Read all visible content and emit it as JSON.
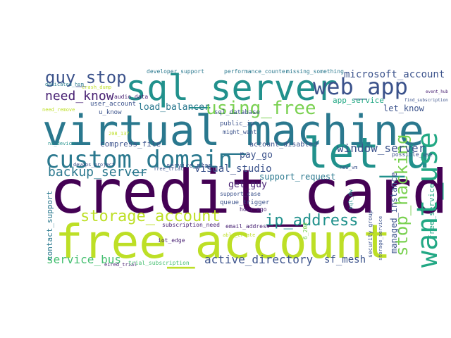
{
  "words": [
    {
      "text": "credit_card",
      "color": "#440154"
    },
    {
      "text": "virtual_machine",
      "color": "#2a788e"
    },
    {
      "text": "free_account",
      "color": "#bddf26"
    },
    {
      "text": "sql_server",
      "color": "#21918c"
    },
    {
      "text": "let_u",
      "color": "#21918c"
    },
    {
      "text": "web_app",
      "color": "#3b528b"
    },
    {
      "text": "custom_domain",
      "color": "#2a788e"
    },
    {
      "text": "want_use",
      "color": "#22a884"
    },
    {
      "text": "using_free",
      "color": "#7ad151"
    },
    {
      "text": "stop_hacking",
      "color": "#7ad151"
    },
    {
      "text": "guy_stop",
      "color": "#3b528b"
    },
    {
      "text": "storage_account",
      "color": "#bddf26"
    },
    {
      "text": "ip_address",
      "color": "#21918c"
    },
    {
      "text": "need_know",
      "color": "#482173"
    },
    {
      "text": "backup_server",
      "color": "#2a788e"
    },
    {
      "text": "window_server",
      "color": "#3b528b"
    },
    {
      "text": "active_directory",
      "color": "#3b528b"
    },
    {
      "text": "service_bus",
      "color": "#44bf70"
    },
    {
      "text": "microsoft_account",
      "color": "#3b528b"
    },
    {
      "text": "load_balancer",
      "color": "#2a788e"
    },
    {
      "text": "visual_studio",
      "color": "#3b528b"
    },
    {
      "text": "sf_mesh",
      "color": "#3b528b"
    },
    {
      "text": "managed_instance",
      "color": "#3b528b"
    },
    {
      "text": "support_request",
      "color": "#2a788e"
    },
    {
      "text": "pay_go",
      "color": "#3b528b"
    },
    {
      "text": "get_guy",
      "color": "#482173"
    },
    {
      "text": "let_know",
      "color": "#3b528b"
    },
    {
      "text": "compress_file",
      "color": "#3b528b"
    },
    {
      "text": "service_plan",
      "color": "#3b528b"
    },
    {
      "text": "app_service",
      "color": "#22a884"
    },
    {
      "text": "contact_support",
      "color": "#2a788e"
    },
    {
      "text": "free_service",
      "color": "#22a884"
    },
    {
      "text": "account_disabled",
      "color": "#3b528b"
    },
    {
      "text": "sql_database",
      "color": "#3b528b"
    },
    {
      "text": "public_ip",
      "color": "#3b528b"
    },
    {
      "text": "might_want",
      "color": "#3b528b"
    },
    {
      "text": "user_account",
      "color": "#3b528b"
    },
    {
      "text": "u_know",
      "color": "#3b528b"
    },
    {
      "text": "audio_data",
      "color": "#482173"
    },
    {
      "text": "event_hub",
      "color": "#482173"
    },
    {
      "text": "find_subscription",
      "color": "#3b528b"
    },
    {
      "text": "developer_support",
      "color": "#2a788e"
    },
    {
      "text": "performance_counter",
      "color": "#2a788e"
    },
    {
      "text": "missing_something",
      "color": "#2a788e"
    },
    {
      "text": "dedicated_hsm",
      "color": "#2a788e"
    },
    {
      "text": "crash_dump",
      "color": "#bddf26"
    },
    {
      "text": "need_remove",
      "color": "#bddf26"
    },
    {
      "text": "na_device",
      "color": "#21918c"
    },
    {
      "text": "devops_project",
      "color": "#3b528b"
    },
    {
      "text": "free_trial",
      "color": "#3b528b"
    },
    {
      "text": "possible_use",
      "color": "#3b528b"
    },
    {
      "text": "new_vm",
      "color": "#3b528b"
    },
    {
      "text": "support_case",
      "color": "#3b528b"
    },
    {
      "text": "queue_trigger",
      "color": "#3b528b"
    },
    {
      "text": "hour_ago",
      "color": "#482173"
    },
    {
      "text": "subscription_need",
      "color": "#482173"
    },
    {
      "text": "email_address",
      "color": "#482173"
    },
    {
      "text": "iot_edge",
      "color": "#482173"
    },
    {
      "text": "eired_trial",
      "color": "#482173"
    },
    {
      "text": "trial_subscription",
      "color": "#44bf70"
    },
    {
      "text": "able_create",
      "color": "#bddf26"
    },
    {
      "text": "sql_dw",
      "color": "#21918c"
    },
    {
      "text": "security_group",
      "color": "#3b528b"
    },
    {
      "text": "storage_service",
      "color": "#3b528b"
    },
    {
      "text": "6_208",
      "color": "#7ad151"
    },
    {
      "text": "208_137",
      "color": "#bddf26"
    }
  ]
}
